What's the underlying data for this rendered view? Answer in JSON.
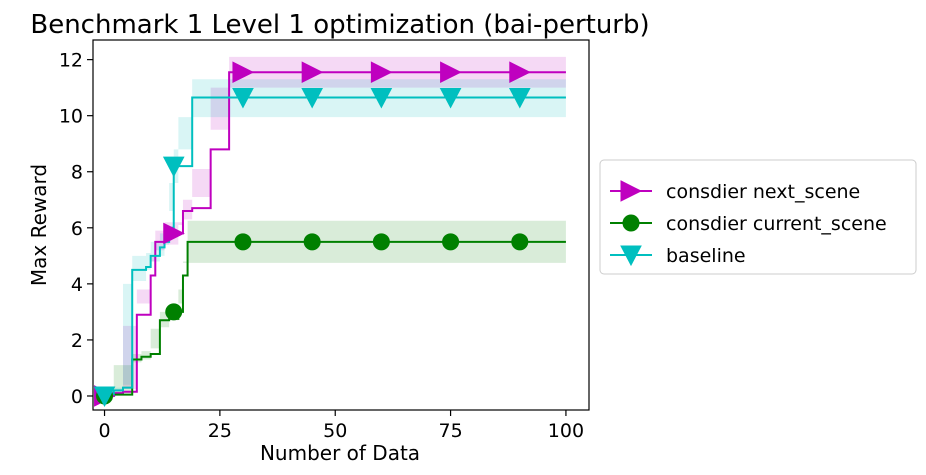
{
  "chart_data": {
    "type": "line",
    "title": "Benchmark 1 Level 1 optimization (bai-perturb)",
    "xlabel": "Number of Data",
    "ylabel": "Max Reward",
    "xlim": [
      -2.5,
      105
    ],
    "ylim": [
      -0.5,
      12.7
    ],
    "xticks": [
      0,
      25,
      50,
      75,
      100
    ],
    "yticks": [
      0,
      2,
      4,
      6,
      8,
      10,
      12
    ],
    "grid": false,
    "legend_position": "outside-right",
    "series": [
      {
        "name": "consdier next_scene",
        "color": "#bf00bf",
        "marker": "triangle-right",
        "x": [
          0,
          1,
          4,
          7,
          10,
          11,
          13,
          16,
          17,
          19,
          23,
          27,
          100
        ],
        "y": [
          0.0,
          0.1,
          0.15,
          2.9,
          4.3,
          5.5,
          5.8,
          5.8,
          6.6,
          6.7,
          8.8,
          11.55,
          11.55
        ],
        "y_low": [
          -0.1,
          0.0,
          0.05,
          2.5,
          3.8,
          5.0,
          5.2,
          5.4,
          6.2,
          6.3,
          8.1,
          11.0,
          11.0
        ],
        "y_high": [
          0.1,
          0.2,
          0.25,
          3.3,
          4.8,
          5.9,
          6.2,
          6.1,
          7.0,
          7.1,
          9.5,
          12.1,
          12.1
        ],
        "markers_x": [
          0,
          15,
          30,
          45,
          60,
          75,
          90
        ],
        "markers_y": [
          0.0,
          5.8,
          11.55,
          11.55,
          11.55,
          11.55,
          11.55
        ]
      },
      {
        "name": "consdier current_scene",
        "color": "#008000",
        "marker": "circle",
        "x": [
          0,
          2,
          6,
          8,
          10,
          12,
          14,
          16,
          17,
          18,
          100
        ],
        "y": [
          0.0,
          0.05,
          1.3,
          1.4,
          1.5,
          2.7,
          2.75,
          3.0,
          4.3,
          5.5,
          5.5
        ],
        "y_low": [
          -0.05,
          0.0,
          1.1,
          1.2,
          1.3,
          2.4,
          2.45,
          2.7,
          3.8,
          4.75,
          4.75
        ],
        "y_high": [
          0.05,
          0.1,
          1.5,
          1.6,
          1.7,
          3.0,
          3.05,
          3.3,
          4.8,
          6.25,
          6.25
        ],
        "markers_x": [
          0,
          15,
          30,
          45,
          60,
          75,
          90
        ],
        "markers_y": [
          0.0,
          3.0,
          5.5,
          5.5,
          5.5,
          5.5,
          5.5
        ]
      },
      {
        "name": "baseline",
        "color": "#00bfbf",
        "marker": "triangle-down",
        "x": [
          0,
          2,
          4,
          6,
          9,
          10,
          12,
          13,
          14,
          15,
          16,
          19,
          100
        ],
        "y": [
          0.0,
          0.2,
          0.3,
          4.5,
          4.6,
          5.0,
          5.3,
          5.5,
          6.0,
          8.2,
          8.2,
          10.65,
          10.65
        ],
        "y_low": [
          -0.1,
          0.1,
          0.2,
          4.0,
          4.1,
          4.5,
          4.8,
          5.0,
          5.4,
          7.6,
          7.6,
          9.95,
          9.95
        ],
        "y_high": [
          0.1,
          0.3,
          0.4,
          5.0,
          5.1,
          5.5,
          5.8,
          6.0,
          6.6,
          8.8,
          8.8,
          11.3,
          11.3
        ],
        "markers_x": [
          0,
          15,
          30,
          45,
          60,
          75,
          90
        ],
        "markers_y": [
          0.0,
          8.2,
          10.65,
          10.65,
          10.65,
          10.65,
          10.65
        ]
      }
    ]
  }
}
